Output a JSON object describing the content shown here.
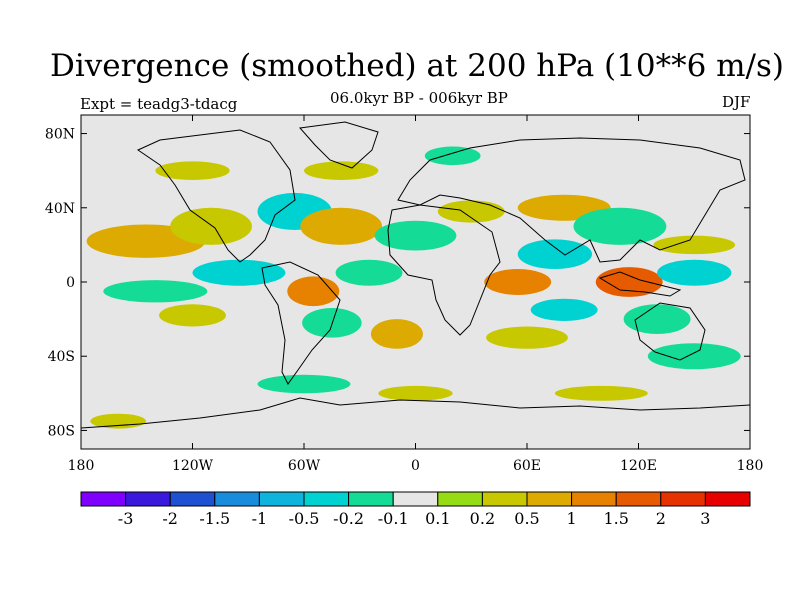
{
  "chart_data": {
    "type": "heatmap",
    "title": "Divergence (smoothed) at 200 hPa (10**6 m/s)",
    "subtitle": "06.0kyr BP - 006kyr BP",
    "left_label": "Expt = teadg3-tdacg",
    "right_label": "DJF",
    "x_ticks": [
      "180",
      "120W",
      "60W",
      "0",
      "60E",
      "120E",
      "180"
    ],
    "x_range": [
      -180,
      180
    ],
    "y_ticks": [
      "80N",
      "40N",
      "0",
      "40S",
      "80S"
    ],
    "y_range": [
      -90,
      90
    ],
    "colorbar": {
      "labels": [
        "-3",
        "-2",
        "-1.5",
        "-1",
        "-0.5",
        "-0.2",
        "-0.1",
        "0.1",
        "0.2",
        "0.5",
        "1",
        "1.5",
        "2",
        "3"
      ],
      "colors": [
        "#7f00ff",
        "#3b19dc",
        "#1e50d2",
        "#1a8cdc",
        "#0fb4dc",
        "#00d2d2",
        "#14dc96",
        "#e6e6e6",
        "#96dc14",
        "#c8c800",
        "#dcaa00",
        "#e68200",
        "#e65a00",
        "#e63200",
        "#e60000"
      ]
    },
    "regions": [
      {
        "lon": -145,
        "lat": 22,
        "rx": 32,
        "ry": 9,
        "value": 0.5
      },
      {
        "lon": -110,
        "lat": 30,
        "rx": 22,
        "ry": 10,
        "value": 0.2
      },
      {
        "lon": -140,
        "lat": -5,
        "rx": 28,
        "ry": 6,
        "value": -0.2
      },
      {
        "lon": -95,
        "lat": 5,
        "rx": 25,
        "ry": 7,
        "value": -0.5
      },
      {
        "lon": -120,
        "lat": -18,
        "rx": 18,
        "ry": 6,
        "value": 0.2
      },
      {
        "lon": -65,
        "lat": 38,
        "rx": 20,
        "ry": 10,
        "value": -0.5
      },
      {
        "lon": -40,
        "lat": 30,
        "rx": 22,
        "ry": 10,
        "value": 0.5
      },
      {
        "lon": -25,
        "lat": 5,
        "rx": 18,
        "ry": 7,
        "value": -0.2
      },
      {
        "lon": -55,
        "lat": -5,
        "rx": 14,
        "ry": 8,
        "value": 1.0
      },
      {
        "lon": -45,
        "lat": -22,
        "rx": 16,
        "ry": 8,
        "value": -0.2
      },
      {
        "lon": -10,
        "lat": -28,
        "rx": 14,
        "ry": 8,
        "value": 0.5
      },
      {
        "lon": 0,
        "lat": 25,
        "rx": 22,
        "ry": 8,
        "value": -0.2
      },
      {
        "lon": 30,
        "lat": 38,
        "rx": 18,
        "ry": 6,
        "value": 0.2
      },
      {
        "lon": 55,
        "lat": 0,
        "rx": 18,
        "ry": 7,
        "value": 1.0
      },
      {
        "lon": 75,
        "lat": 15,
        "rx": 20,
        "ry": 8,
        "value": -0.5
      },
      {
        "lon": 80,
        "lat": 40,
        "rx": 25,
        "ry": 7,
        "value": 0.5
      },
      {
        "lon": 110,
        "lat": 30,
        "rx": 25,
        "ry": 10,
        "value": -0.2
      },
      {
        "lon": 115,
        "lat": 0,
        "rx": 18,
        "ry": 8,
        "value": 1.5
      },
      {
        "lon": 150,
        "lat": 5,
        "rx": 20,
        "ry": 7,
        "value": -0.5
      },
      {
        "lon": 150,
        "lat": 20,
        "rx": 22,
        "ry": 5,
        "value": 0.2
      },
      {
        "lon": 130,
        "lat": -20,
        "rx": 18,
        "ry": 8,
        "value": -0.2
      },
      {
        "lon": 150,
        "lat": -40,
        "rx": 25,
        "ry": 7,
        "value": -0.2
      },
      {
        "lon": 60,
        "lat": -30,
        "rx": 22,
        "ry": 6,
        "value": 0.2
      },
      {
        "lon": 80,
        "lat": -15,
        "rx": 18,
        "ry": 6,
        "value": -0.5
      },
      {
        "lon": -120,
        "lat": 60,
        "rx": 20,
        "ry": 5,
        "value": 0.2
      },
      {
        "lon": -40,
        "lat": 60,
        "rx": 20,
        "ry": 5,
        "value": 0.2
      },
      {
        "lon": 20,
        "lat": 68,
        "rx": 15,
        "ry": 5,
        "value": -0.2
      },
      {
        "lon": -60,
        "lat": -55,
        "rx": 25,
        "ry": 5,
        "value": -0.2
      },
      {
        "lon": 0,
        "lat": -60,
        "rx": 20,
        "ry": 4,
        "value": 0.2
      },
      {
        "lon": 100,
        "lat": -60,
        "rx": 25,
        "ry": 4,
        "value": 0.2
      },
      {
        "lon": -160,
        "lat": -75,
        "rx": 15,
        "ry": 4,
        "value": 0.2
      }
    ]
  }
}
